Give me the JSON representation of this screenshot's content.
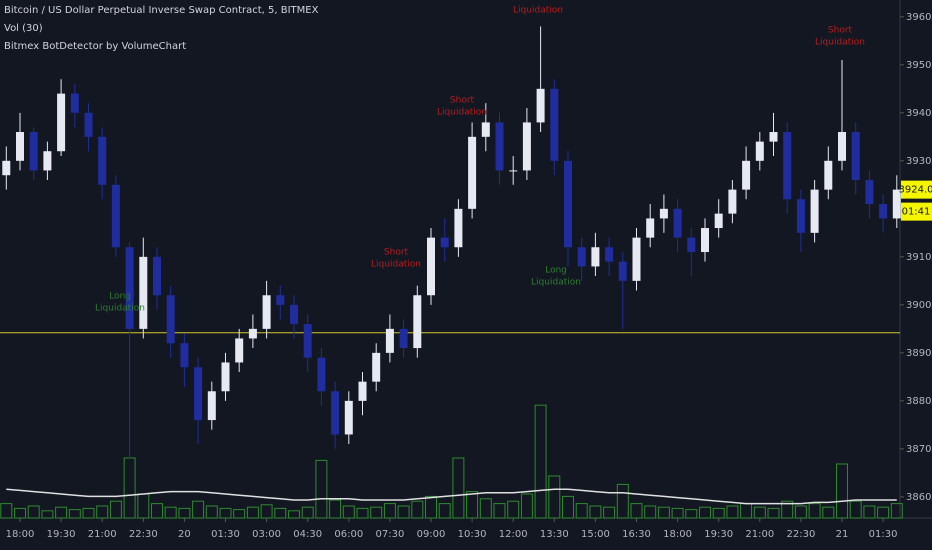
{
  "chart_data": {
    "type": "candlestick",
    "title": "Bitcoin / US Dollar Perpetual Inverse Swap Contract, 5, BITMEX",
    "indicators": [
      "Vol (30)",
      "Bitmex BotDetector by VolumeChart"
    ],
    "categories": [
      null,
      "18:00",
      null,
      null,
      "19:30",
      null,
      null,
      "21:00",
      null,
      null,
      "22:30",
      null,
      null,
      "20",
      null,
      null,
      "01:30",
      null,
      null,
      "03:00",
      null,
      null,
      "04:30",
      null,
      null,
      "06:00",
      null,
      null,
      "07:30",
      null,
      null,
      "09:00",
      null,
      null,
      "10:30",
      null,
      null,
      "12:00",
      null,
      null,
      "13:30",
      null,
      null,
      "15:00",
      null,
      null,
      "16:30",
      null,
      null,
      "18:00",
      null,
      null,
      "19:30",
      null,
      null,
      "21:00",
      null,
      null,
      "22:30",
      null,
      null,
      "21",
      null,
      null,
      "01:30",
      null
    ],
    "open": [
      3927,
      3930,
      3936,
      3928,
      3932,
      3944,
      3940,
      3935,
      3925,
      3912,
      3895,
      3910,
      3902,
      3892,
      3887,
      3876,
      3882,
      3888,
      3893,
      3895,
      3902,
      3900,
      3896,
      3889,
      3882,
      3873,
      3880,
      3884,
      3890,
      3895,
      3891,
      3902,
      3914,
      3912,
      3920,
      3935,
      3938,
      3928,
      3928,
      3938,
      3945,
      3930,
      3912,
      3908,
      3912,
      3909,
      3905,
      3914,
      3918,
      3920,
      3914,
      3911,
      3916,
      3919,
      3924,
      3930,
      3934,
      3936,
      3922,
      3915,
      3924,
      3930,
      3936,
      3926,
      3921,
      3918
    ],
    "high": [
      3933,
      3940,
      3937,
      3934,
      3947,
      3946,
      3942,
      3937,
      3927,
      3913,
      3914,
      3912,
      3904,
      3894,
      3889,
      3884,
      3890,
      3895,
      3898,
      3905,
      3904,
      3902,
      3898,
      3891,
      3884,
      3882,
      3886,
      3892,
      3898,
      3897,
      3904,
      3916,
      3918,
      3922,
      3938,
      3942,
      3940,
      3931,
      3941,
      3958,
      3947,
      3932,
      3914,
      3915,
      3914,
      3911,
      3916,
      3921,
      3923,
      3922,
      3916,
      3918,
      3922,
      3926,
      3933,
      3936,
      3940,
      3938,
      3924,
      3926,
      3933,
      3951,
      3938,
      3928,
      3923,
      3927
    ],
    "low": [
      3924,
      3928,
      3926,
      3926,
      3931,
      3937,
      3932,
      3922,
      3910,
      3868,
      3893,
      3899,
      3889,
      3883,
      3871,
      3874,
      3880,
      3886,
      3891,
      3893,
      3897,
      3893,
      3886,
      3879,
      3870,
      3871,
      3877,
      3882,
      3888,
      3889,
      3889,
      3900,
      3909,
      3910,
      3918,
      3932,
      3925,
      3925,
      3926,
      3936,
      3927,
      3908,
      3905,
      3906,
      3906,
      3895,
      3903,
      3912,
      3915,
      3911,
      3906,
      3909,
      3914,
      3917,
      3922,
      3928,
      3931,
      3919,
      3911,
      3913,
      3922,
      3928,
      3923,
      3918,
      3915,
      3916
    ],
    "close": [
      3930,
      3936,
      3928,
      3932,
      3944,
      3940,
      3935,
      3925,
      3912,
      3895,
      3910,
      3902,
      3892,
      3887,
      3876,
      3882,
      3888,
      3893,
      3895,
      3902,
      3900,
      3896,
      3889,
      3882,
      3873,
      3880,
      3884,
      3890,
      3895,
      3891,
      3902,
      3914,
      3912,
      3920,
      3935,
      3938,
      3928,
      3928,
      3938,
      3945,
      3930,
      3912,
      3908,
      3912,
      3909,
      3905,
      3914,
      3918,
      3920,
      3914,
      3911,
      3916,
      3919,
      3924,
      3930,
      3934,
      3936,
      3922,
      3915,
      3924,
      3930,
      3936,
      3926,
      3921,
      3918,
      3924
    ],
    "up_color": "#e6e8f2",
    "down_color": "#1f2d9e",
    "volume": [
      12,
      8,
      10,
      6,
      9,
      7,
      8,
      10,
      14,
      50,
      20,
      12,
      9,
      8,
      14,
      10,
      8,
      7,
      9,
      11,
      8,
      6,
      9,
      48,
      15,
      10,
      8,
      9,
      12,
      10,
      14,
      18,
      12,
      50,
      22,
      16,
      12,
      14,
      20,
      94,
      35,
      18,
      12,
      10,
      9,
      28,
      12,
      10,
      9,
      8,
      7,
      9,
      8,
      10,
      12,
      9,
      8,
      14,
      10,
      12,
      9,
      45,
      14,
      10,
      9,
      12
    ],
    "volume_color": "#2e8b2e",
    "volume_ma": [
      24,
      23,
      22,
      21,
      20,
      19,
      18,
      18,
      18,
      19,
      20,
      21,
      22,
      22,
      22,
      21,
      20,
      19,
      18,
      17,
      16,
      15,
      15,
      16,
      16,
      16,
      15,
      15,
      15,
      15,
      16,
      17,
      18,
      19,
      20,
      21,
      21,
      21,
      22,
      23,
      24,
      24,
      23,
      22,
      21,
      21,
      20,
      19,
      18,
      17,
      16,
      15,
      14,
      13,
      12,
      12,
      12,
      12,
      12,
      13,
      13,
      14,
      15,
      15,
      15,
      15
    ],
    "volume_ma_color": "#e0e0e0",
    "volume_lim": [
      0,
      100
    ],
    "ylim": [
      3855.6,
      3963.5
    ],
    "yticks": [
      {
        "value": 3860,
        "label": "3860.0"
      },
      {
        "value": 3870,
        "label": "3870.0"
      },
      {
        "value": 3880,
        "label": "3880.0"
      },
      {
        "value": 3890,
        "label": "3890.0"
      },
      {
        "value": 3900,
        "label": "3900.0"
      },
      {
        "value": 3910,
        "label": "3910.0"
      },
      {
        "value": 3920,
        "label": "3920.0"
      },
      {
        "value": 3930,
        "label": "3930.0"
      },
      {
        "value": 3940,
        "label": "3940.0"
      },
      {
        "value": 3950,
        "label": "3950.0"
      },
      {
        "value": 3960,
        "label": "3960.0"
      }
    ],
    "last_price": {
      "value": 3924,
      "label": "3924.0"
    },
    "countdown": "01:41",
    "hline": 3894.2,
    "hline_color": "#d4c72a",
    "annotations": [
      {
        "lines": [
          "Long",
          "Liquidation"
        ],
        "color": "#2e7d32"
      },
      {
        "lines": [
          "Short",
          "Liquidation"
        ],
        "color": "#b71c1c"
      },
      {
        "lines": [
          "Short",
          "Liquidation"
        ],
        "color": "#b71c1c"
      },
      {
        "lines": [
          "Liquidation"
        ],
        "color": "#b71c1c"
      },
      {
        "lines": [
          "Long",
          "Liquidation"
        ],
        "color": "#2e7d32"
      },
      {
        "lines": [
          "Short",
          "Liquidation"
        ],
        "color": "#b71c1c"
      }
    ],
    "grid": false
  }
}
